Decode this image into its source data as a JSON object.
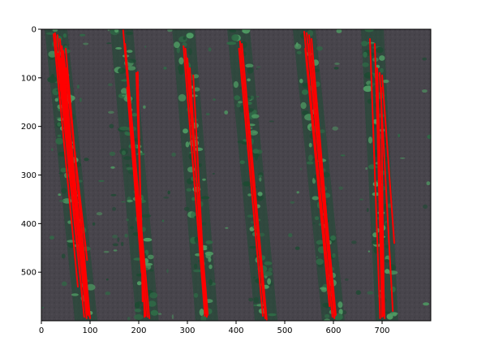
{
  "chart_data": {
    "type": "image-with-overlay",
    "title": "",
    "xlabel": "",
    "ylabel": "",
    "xlim": [
      0,
      800
    ],
    "ylim": [
      600,
      0
    ],
    "xticks": [
      0,
      100,
      200,
      300,
      400,
      500,
      600,
      700
    ],
    "yticks": [
      0,
      100,
      200,
      300,
      400,
      500
    ],
    "image_description_name": "aerial-crop-field",
    "overlay_color": "#ff0000",
    "background_colors": {
      "soil": "#48454c",
      "soil_dark": "#2f2d33",
      "plant": "#2f6b46",
      "plant_light": "#4f9a63",
      "plant_dark": "#1e4a33"
    },
    "crop_rows": [
      {
        "x_top": 30,
        "x_bottom": 92
      },
      {
        "x_top": 165,
        "x_bottom": 218
      },
      {
        "x_top": 292,
        "x_bottom": 340
      },
      {
        "x_top": 405,
        "x_bottom": 462
      },
      {
        "x_top": 540,
        "x_bottom": 600
      },
      {
        "x_top": 680,
        "x_bottom": 710
      }
    ],
    "detected_lines": [
      {
        "x1": 28,
        "y1": 8,
        "x2": 88,
        "y2": 592
      },
      {
        "x1": 33,
        "y1": 12,
        "x2": 93,
        "y2": 595
      },
      {
        "x1": 38,
        "y1": 20,
        "x2": 95,
        "y2": 588
      },
      {
        "x1": 42,
        "y1": 35,
        "x2": 96,
        "y2": 585
      },
      {
        "x1": 45,
        "y1": 45,
        "x2": 94,
        "y2": 475
      },
      {
        "x1": 50,
        "y1": 40,
        "x2": 98,
        "y2": 590
      },
      {
        "x1": 35,
        "y1": 50,
        "x2": 85,
        "y2": 560
      },
      {
        "x1": 40,
        "y1": 60,
        "x2": 80,
        "y2": 470
      },
      {
        "x1": 25,
        "y1": 10,
        "x2": 75,
        "y2": 530
      },
      {
        "x1": 52,
        "y1": 80,
        "x2": 100,
        "y2": 595
      },
      {
        "x1": 168,
        "y1": 2,
        "x2": 218,
        "y2": 592
      },
      {
        "x1": 172,
        "y1": 30,
        "x2": 222,
        "y2": 595
      },
      {
        "x1": 180,
        "y1": 150,
        "x2": 214,
        "y2": 590
      },
      {
        "x1": 195,
        "y1": 90,
        "x2": 212,
        "y2": 592
      },
      {
        "x1": 198,
        "y1": 88,
        "x2": 208,
        "y2": 560
      },
      {
        "x1": 176,
        "y1": 120,
        "x2": 206,
        "y2": 500
      },
      {
        "x1": 292,
        "y1": 35,
        "x2": 336,
        "y2": 590
      },
      {
        "x1": 296,
        "y1": 40,
        "x2": 342,
        "y2": 588
      },
      {
        "x1": 300,
        "y1": 60,
        "x2": 340,
        "y2": 592
      },
      {
        "x1": 312,
        "y1": 95,
        "x2": 338,
        "y2": 585
      },
      {
        "x1": 305,
        "y1": 80,
        "x2": 334,
        "y2": 560
      },
      {
        "x1": 408,
        "y1": 25,
        "x2": 460,
        "y2": 595
      },
      {
        "x1": 412,
        "y1": 30,
        "x2": 463,
        "y2": 598
      },
      {
        "x1": 406,
        "y1": 40,
        "x2": 455,
        "y2": 590
      },
      {
        "x1": 540,
        "y1": 5,
        "x2": 598,
        "y2": 592
      },
      {
        "x1": 545,
        "y1": 8,
        "x2": 602,
        "y2": 595
      },
      {
        "x1": 550,
        "y1": 12,
        "x2": 605,
        "y2": 588
      },
      {
        "x1": 548,
        "y1": 30,
        "x2": 600,
        "y2": 560
      },
      {
        "x1": 555,
        "y1": 20,
        "x2": 603,
        "y2": 590
      },
      {
        "x1": 542,
        "y1": 40,
        "x2": 592,
        "y2": 570
      },
      {
        "x1": 675,
        "y1": 20,
        "x2": 696,
        "y2": 595
      },
      {
        "x1": 685,
        "y1": 30,
        "x2": 703,
        "y2": 590
      },
      {
        "x1": 690,
        "y1": 80,
        "x2": 705,
        "y2": 595
      },
      {
        "x1": 695,
        "y1": 90,
        "x2": 722,
        "y2": 580
      },
      {
        "x1": 700,
        "y1": 95,
        "x2": 725,
        "y2": 440
      },
      {
        "x1": 688,
        "y1": 100,
        "x2": 700,
        "y2": 592
      },
      {
        "x1": 698,
        "y1": 120,
        "x2": 704,
        "y2": 590
      }
    ]
  }
}
